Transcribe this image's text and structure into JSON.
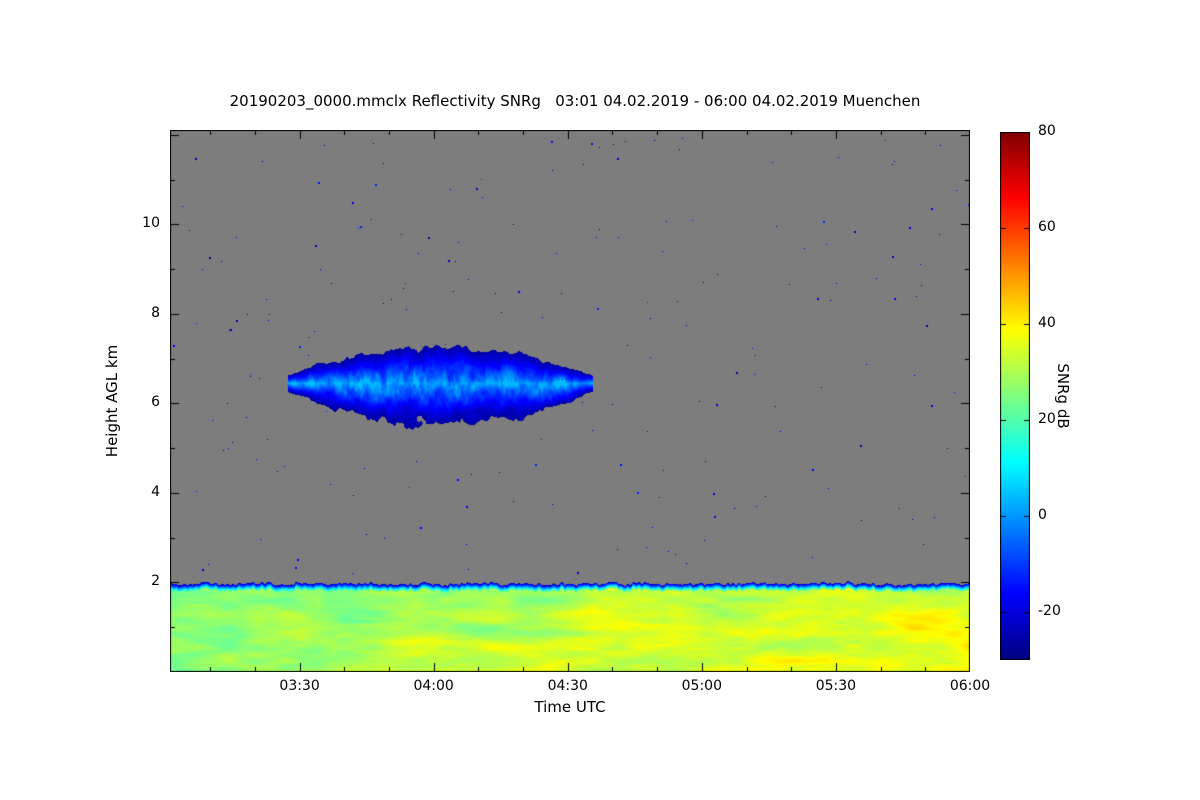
{
  "figure": {
    "title": "20190203_0000.mmclx Reflectivity SNRg   03:01 04.02.2019 - 06:00 04.02.2019 Muenchen",
    "background": "#ffffff"
  },
  "chart_data": {
    "type": "heatmap",
    "title": "20190203_0000.mmclx Reflectivity SNRg   03:01 04.02.2019 - 06:00 04.02.2019 Muenchen",
    "file": "20190203_0000.mmclx",
    "quantity": "Reflectivity SNRg",
    "time_span": "03:01 04.02.2019 - 06:00 04.02.2019",
    "station": "Muenchen",
    "xlabel": "Time UTC",
    "ylabel": "Height AGL km",
    "x_axis": {
      "tick_labels": [
        "03:30",
        "04:00",
        "04:30",
        "05:00",
        "05:30",
        "06:00"
      ],
      "tick_minutes": [
        210,
        240,
        270,
        300,
        330,
        360
      ],
      "range_minutes": [
        181,
        360
      ],
      "minor_tick_step_minutes": 10
    },
    "y_axis": {
      "tick_labels": [
        "2",
        "4",
        "6",
        "8",
        "10"
      ],
      "tick_km": [
        2,
        4,
        6,
        8,
        10
      ],
      "range_km": [
        0,
        12.11
      ],
      "minor_tick_step_km": 1
    },
    "colorbar": {
      "label": "SNRg dB",
      "tick_labels": [
        "80",
        "60",
        "40",
        "20",
        "0",
        "-20"
      ],
      "tick_values": [
        80,
        60,
        40,
        20,
        0,
        -20
      ],
      "range": [
        -30,
        80
      ],
      "colormap": "jet"
    },
    "no_data_color": "#7d7d7d",
    "features": {
      "boundary_layer": {
        "height_km": [
          0,
          2.0
        ],
        "extent": "entire time axis",
        "snr_db": [
          17,
          46
        ],
        "appearance": "cyan-green-yellow turbulent texture, more yellow/orange toward 06:00, thin blue rim at ragged 2 km top edge"
      },
      "cloud_layer": {
        "time_minutes": [
          207,
          276
        ],
        "time_utc": [
          "03:27",
          "04:36"
        ],
        "height_km": [
          5.6,
          7.2
        ],
        "core": {
          "time_minute": 238,
          "height_km": 6.45
        },
        "snr_db": [
          -26,
          4
        ],
        "appearance": "lens-shaped cloud, dark blue ragged edges, lighter blue/cyan core"
      },
      "noise_speckles": {
        "count": 260,
        "snr_db": [
          -28,
          -12
        ],
        "appearance": "sparse 1-2 px blue dots scattered over the gray no-data region"
      }
    }
  }
}
